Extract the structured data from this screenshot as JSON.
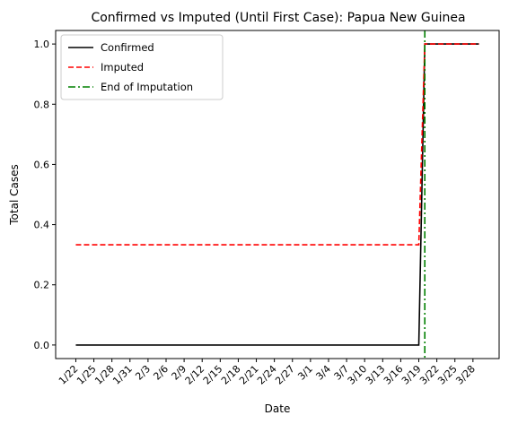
{
  "chart_data": {
    "type": "line",
    "title": "Confirmed vs Imputed (Until First Case): Papua New Guinea",
    "xlabel": "Date",
    "ylabel": "Total Cases",
    "x_start": "2020-01-22",
    "x_end": "2020-03-29",
    "ylim": [
      -0.045,
      1.045
    ],
    "y_ticks": [
      0.0,
      0.2,
      0.4,
      0.6,
      0.8,
      1.0
    ],
    "y_tick_labels": [
      "0.0",
      "0.2",
      "0.4",
      "0.6",
      "0.8",
      "1.0"
    ],
    "x_ticks": [
      "2020-01-22",
      "2020-01-25",
      "2020-01-28",
      "2020-01-31",
      "2020-02-03",
      "2020-02-06",
      "2020-02-09",
      "2020-02-12",
      "2020-02-15",
      "2020-02-18",
      "2020-02-21",
      "2020-02-24",
      "2020-02-27",
      "2020-03-01",
      "2020-03-04",
      "2020-03-07",
      "2020-03-10",
      "2020-03-13",
      "2020-03-16",
      "2020-03-19",
      "2020-03-22",
      "2020-03-25",
      "2020-03-28"
    ],
    "x_tick_labels": [
      "1/22",
      "1/25",
      "1/28",
      "1/31",
      "2/3",
      "2/6",
      "2/9",
      "2/12",
      "2/15",
      "2/18",
      "2/21",
      "2/24",
      "2/27",
      "3/1",
      "3/4",
      "3/7",
      "3/10",
      "3/13",
      "3/16",
      "3/19",
      "3/22",
      "3/25",
      "3/28"
    ],
    "grid": false,
    "legend_position": "top-left",
    "series": [
      {
        "name": "Confirmed",
        "color": "#000000",
        "style": "solid",
        "points": [
          [
            "2020-01-22",
            0
          ],
          [
            "2020-03-19",
            0
          ],
          [
            "2020-03-20",
            1
          ],
          [
            "2020-03-29",
            1
          ]
        ]
      },
      {
        "name": "Imputed",
        "color": "#ff0000",
        "style": "dashed",
        "points": [
          [
            "2020-01-22",
            0.333
          ],
          [
            "2020-03-19",
            0.333
          ],
          [
            "2020-03-20",
            1
          ],
          [
            "2020-03-29",
            1
          ]
        ]
      }
    ],
    "vlines": [
      {
        "name": "End of Imputation",
        "color": "#008000",
        "style": "dashdot",
        "x": "2020-03-20"
      }
    ]
  }
}
